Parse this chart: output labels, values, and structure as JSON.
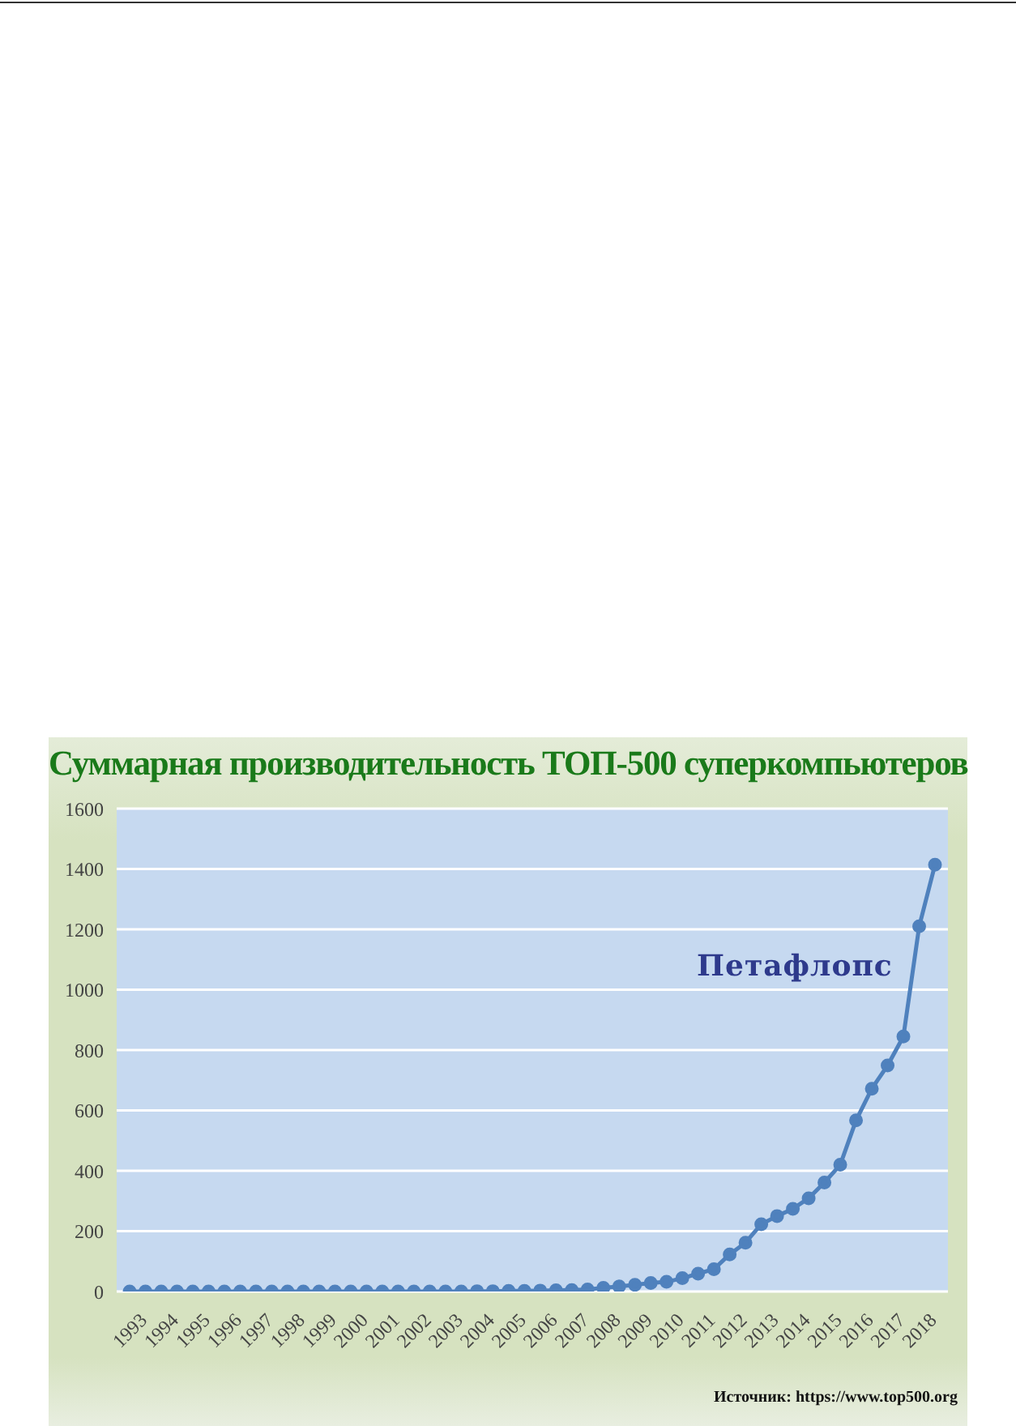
{
  "chart_data": {
    "type": "line",
    "title": "Суммарная производительность ТОП-500 суперкомпьютеров",
    "categories": [
      "1993",
      null,
      "1994",
      null,
      "1995",
      null,
      "1996",
      null,
      "1997",
      null,
      "1998",
      null,
      "1999",
      null,
      "2000",
      null,
      "2001",
      null,
      "2002",
      null,
      "2003",
      null,
      "2004",
      null,
      "2005",
      null,
      "2006",
      null,
      "2007",
      null,
      "2008",
      null,
      "2009",
      null,
      "2010",
      null,
      "2011",
      null,
      "2012",
      null,
      "2013",
      null,
      "2014",
      null,
      "2015",
      null,
      "2016",
      null,
      "2017",
      null,
      "2018",
      null
    ],
    "series": [
      {
        "color": "#4f81bd",
        "values": [
          0,
          0,
          0,
          0,
          0,
          0,
          0,
          0,
          0,
          0,
          0,
          0,
          0,
          0,
          0,
          0,
          0,
          0,
          0,
          0,
          0,
          0,
          1,
          1,
          2,
          2,
          3,
          4,
          5,
          7,
          12,
          17,
          22,
          28,
          32,
          44,
          59,
          74,
          123,
          162,
          223,
          250,
          274,
          309,
          361,
          420,
          567,
          672,
          749,
          845,
          1210,
          1414
        ]
      }
    ],
    "ylim": [
      0,
      1600
    ],
    "yticks": [
      0,
      200,
      400,
      600,
      800,
      1000,
      1200,
      1400,
      1600
    ],
    "grid": "y",
    "marker": "circle",
    "line_style": "solid",
    "annotations": [
      "Петафлопс",
      "Источник: https://www.top500.org"
    ]
  }
}
